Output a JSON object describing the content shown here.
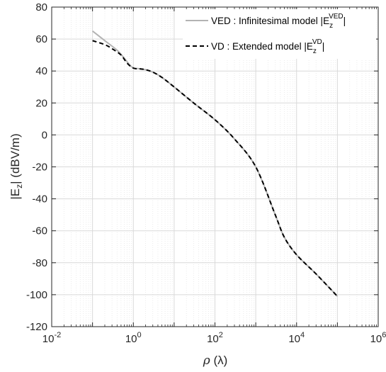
{
  "chart_data": {
    "type": "line",
    "x_scale": "log",
    "y_scale": "linear",
    "xlim": [
      0.01,
      1000000
    ],
    "ylim": [
      -120,
      80
    ],
    "grid": true,
    "minor_grid": true,
    "legend_position": "top-right",
    "xlabel": {
      "symbol": "ρ",
      "rest": " (λ)"
    },
    "ylabel": {
      "pre": "|E",
      "sub": "z",
      "post": "| (dBV/m)"
    },
    "y_ticks": [
      "80",
      "60",
      "40",
      "20",
      "0",
      "-20",
      "-40",
      "-60",
      "-80",
      "-100",
      "-120"
    ],
    "x_ticks": [
      {
        "base": "10",
        "exp": "-2"
      },
      {
        "base": "10",
        "exp": "0"
      },
      {
        "base": "10",
        "exp": "2"
      },
      {
        "base": "10",
        "exp": "4"
      },
      {
        "base": "10",
        "exp": "6"
      }
    ],
    "series": [
      {
        "legend_pre": "VED : Infinitesimal model |E",
        "legend_sub": "z",
        "legend_sup": "VED",
        "legend_post": "|",
        "color": "#b3b3b3",
        "dash": "solid",
        "x": [
          0.1,
          0.2,
          0.4,
          0.6,
          0.8,
          1,
          1.5,
          2,
          3,
          5,
          10,
          30,
          100,
          300,
          1000,
          3000,
          5000,
          10000,
          30000,
          100000
        ],
        "y": [
          65,
          59,
          53,
          48,
          44,
          42,
          41.3,
          40.8,
          39.3,
          36,
          30,
          20,
          9.5,
          -2.5,
          -20,
          -50,
          -64,
          -75,
          -87,
          -101
        ]
      },
      {
        "legend_pre": "VD : Extended model |E",
        "legend_sub": "z",
        "legend_sup": "VD",
        "legend_post": "|",
        "color": "#000000",
        "dash": "dashed",
        "x": [
          0.1,
          0.2,
          0.3,
          0.5,
          0.7,
          1,
          1.5,
          2,
          3,
          5,
          10,
          30,
          100,
          300,
          1000,
          3000,
          5000,
          10000,
          30000,
          100000
        ],
        "y": [
          59,
          56.5,
          54,
          50,
          45,
          41.8,
          41.3,
          40.8,
          39.3,
          36,
          30,
          20,
          9.5,
          -2.5,
          -20,
          -50,
          -64,
          -75,
          -87,
          -101
        ]
      }
    ]
  }
}
